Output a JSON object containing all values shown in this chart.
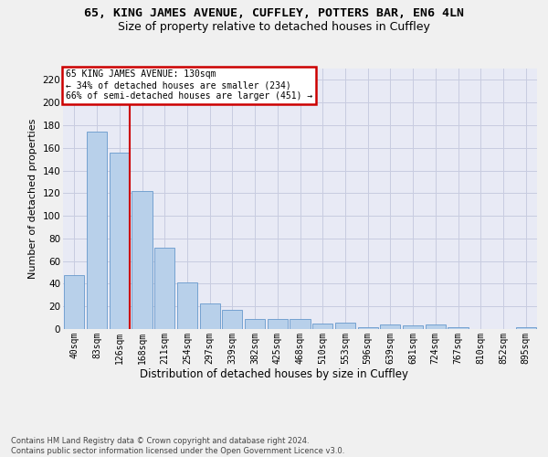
{
  "title1": "65, KING JAMES AVENUE, CUFFLEY, POTTERS BAR, EN6 4LN",
  "title2": "Size of property relative to detached houses in Cuffley",
  "xlabel": "Distribution of detached houses by size in Cuffley",
  "ylabel": "Number of detached properties",
  "categories": [
    "40sqm",
    "83sqm",
    "126sqm",
    "168sqm",
    "211sqm",
    "254sqm",
    "297sqm",
    "339sqm",
    "382sqm",
    "425sqm",
    "468sqm",
    "510sqm",
    "553sqm",
    "596sqm",
    "639sqm",
    "681sqm",
    "724sqm",
    "767sqm",
    "810sqm",
    "852sqm",
    "895sqm"
  ],
  "values": [
    48,
    174,
    156,
    122,
    72,
    41,
    23,
    17,
    9,
    9,
    9,
    5,
    6,
    2,
    4,
    3,
    4,
    2,
    0,
    0,
    2
  ],
  "bar_color": "#b8d0ea",
  "bar_edge_color": "#6699cc",
  "annotation_text": "65 KING JAMES AVENUE: 130sqm\n← 34% of detached houses are smaller (234)\n66% of semi-detached houses are larger (451) →",
  "annotation_box_facecolor": "#ffffff",
  "annotation_box_edgecolor": "#cc0000",
  "vline_color": "#cc0000",
  "vline_x_index": 2,
  "ylim": [
    0,
    230
  ],
  "yticks": [
    0,
    20,
    40,
    60,
    80,
    100,
    120,
    140,
    160,
    180,
    200,
    220
  ],
  "grid_color": "#c8cce0",
  "plot_bg_color": "#e8eaf5",
  "fig_bg_color": "#f0f0f0",
  "footer": "Contains HM Land Registry data © Crown copyright and database right 2024.\nContains public sector information licensed under the Open Government Licence v3.0."
}
